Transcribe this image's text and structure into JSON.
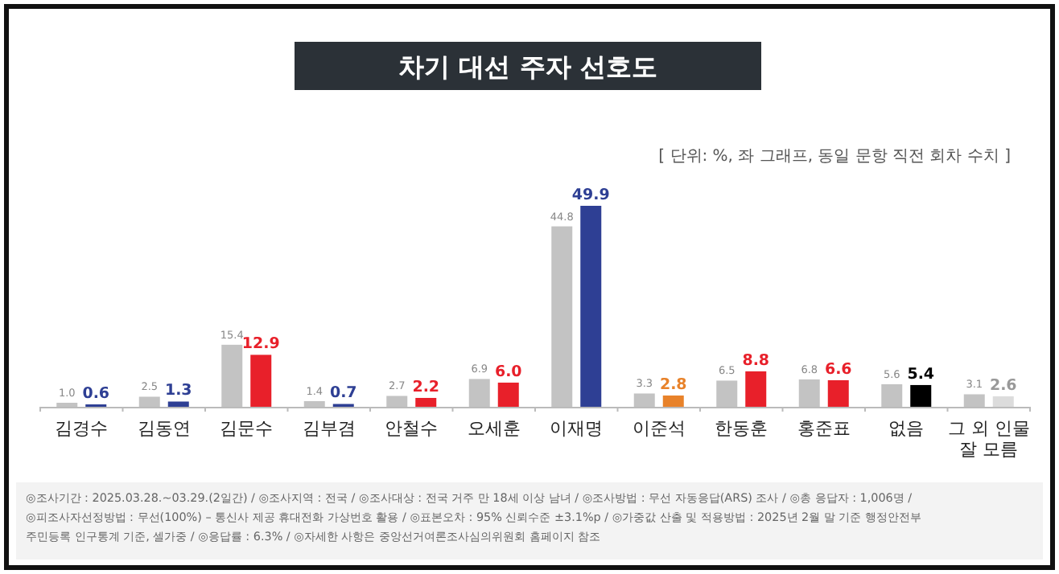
{
  "chart_data": {
    "type": "bar",
    "title": "차기 대선 주자 선호도",
    "subtitle": "[ 단위: %, 좌 그래프, 동일 문항 직전 회차 수치 ]",
    "categories": [
      "김경수",
      "김동연",
      "김문수",
      "김부겸",
      "안철수",
      "오세훈",
      "이재명",
      "이준석",
      "한동훈",
      "홍준표",
      "없음",
      "그 외 인물 잘 모름"
    ],
    "series": [
      {
        "color": "#c3c3c3",
        "values": [
          1.0,
          2.5,
          15.4,
          1.4,
          2.7,
          6.9,
          44.8,
          3.3,
          6.5,
          6.8,
          5.6,
          3.1
        ],
        "value_labels": [
          "1.0",
          "2.5",
          "15.4",
          "1.4",
          "2.7",
          "6.9",
          "44.8",
          "3.3",
          "6.5",
          "6.8",
          "5.6",
          "3.1"
        ]
      },
      {
        "colors": [
          "#2e3f94",
          "#2e3f94",
          "#e8202a",
          "#2e3f94",
          "#e8202a",
          "#e8202a",
          "#2e3f94",
          "#e8822a",
          "#e8202a",
          "#e8202a",
          "#000000",
          "#dcdcdc"
        ],
        "values": [
          0.6,
          1.3,
          12.9,
          0.7,
          2.2,
          6.0,
          49.9,
          2.8,
          8.8,
          6.6,
          5.4,
          2.6
        ],
        "value_labels": [
          "0.6",
          "1.3",
          "12.9",
          "0.7",
          "2.2",
          "6.0",
          "49.9",
          "2.8",
          "8.8",
          "6.6",
          "5.4",
          "2.6"
        ]
      }
    ],
    "annotations": [
      "◎조사기간 : 2025.03.28.~03.29.(2일간) / ◎조사지역 : 전국 / ◎조사대상 : 전국 거주 만 18세 이상 남녀 / ◎조사방법 : 무선 자동응답(ARS) 조사 / ◎총 응답자 : 1,006명 /",
      "◎피조사자선정방법 : 무선(100%) – 통신사 제공 휴대전화 가상번호 활용 / ◎표본오차 : 95% 신뢰수준 ±3.1%p / ◎가중값 산출 및 적용방법 : 2025년 2월 말 기준 행정안전부",
      "주민등록 인구통계 기준, 셀가중 / ◎응답률 : 6.3% / ◎자세한 사항은 중앙선거여론조사심의위원회 홈페이지 참조"
    ]
  }
}
